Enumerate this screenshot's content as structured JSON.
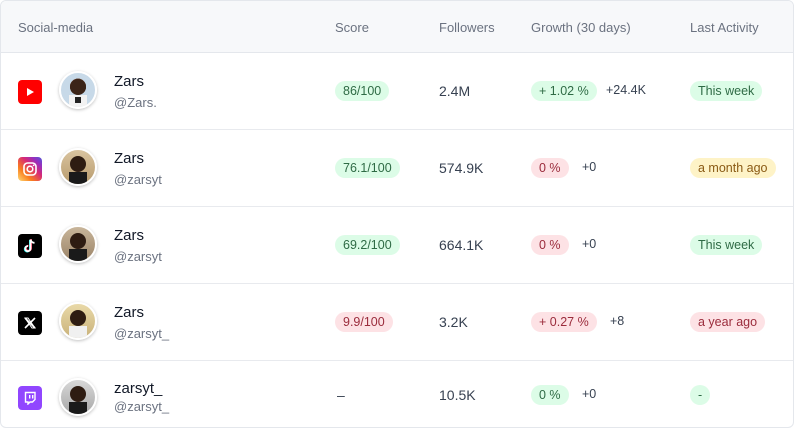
{
  "header": {
    "social_media": "Social-media",
    "score": "Score",
    "followers": "Followers",
    "growth": "Growth (30 days)",
    "last_activity": "Last Activity"
  },
  "rows": [
    {
      "platform": "youtube-icon",
      "name": "Zars",
      "handle": "@Zars.",
      "score": "86/100",
      "score_status": "green",
      "followers": "2.4M",
      "growth": "+ 1.02 %",
      "growth_status": "green",
      "delta": "+24.4K",
      "activity": "This week",
      "activity_status": "green"
    },
    {
      "platform": "instagram-icon",
      "name": "Zars",
      "handle": "@zarsyt",
      "score": "76.1/100",
      "score_status": "green",
      "followers": "574.9K",
      "growth": "0 %",
      "growth_status": "red",
      "delta": "+0",
      "activity": "a month ago",
      "activity_status": "yellow"
    },
    {
      "platform": "tiktok-icon",
      "name": "Zars",
      "handle": "@zarsyt",
      "score": "69.2/100",
      "score_status": "green",
      "followers": "664.1K",
      "growth": "0 %",
      "growth_status": "red",
      "delta": "+0",
      "activity": "This week",
      "activity_status": "green"
    },
    {
      "platform": "x-icon",
      "name": "Zars",
      "handle": "@zarsyt_",
      "score": "9.9/100",
      "score_status": "red",
      "followers": "3.2K",
      "growth": "+ 0.27 %",
      "growth_status": "red",
      "delta": "+8",
      "activity": "a year ago",
      "activity_status": "red"
    },
    {
      "platform": "twitch-icon",
      "name": "zarsyt_",
      "handle": "@zarsyt_",
      "score": "–",
      "score_status": "none",
      "followers": "10.5K",
      "growth": "0 %",
      "growth_status": "green",
      "delta": "+0",
      "activity": "-",
      "activity_status": "green"
    }
  ],
  "colors": {
    "youtube": "#ff0000",
    "instagram_start": "#feda75",
    "instagram_end": "#8134af",
    "tiktok": "#000000",
    "x": "#000000",
    "twitch": "#9146ff"
  }
}
